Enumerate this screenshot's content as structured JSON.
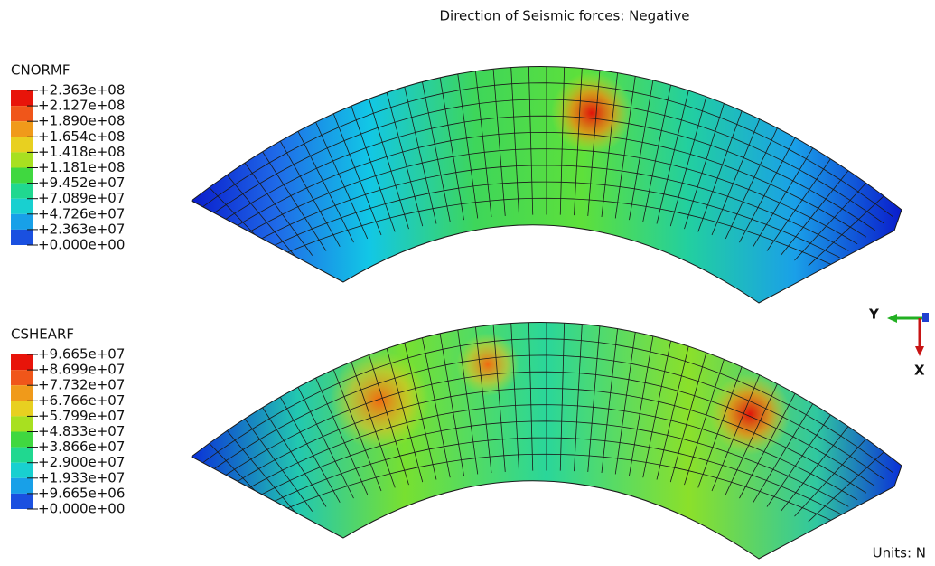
{
  "title": "Direction of Seismic forces: Negative",
  "legends": [
    {
      "title": "CNORMF",
      "labels": [
        "+2.363e+08",
        "+2.127e+08",
        "+1.890e+08",
        "+1.654e+08",
        "+1.418e+08",
        "+1.181e+08",
        "+9.452e+07",
        "+7.089e+07",
        "+4.726e+07",
        "+2.363e+07",
        "+0.000e+00"
      ]
    },
    {
      "title": "CSHEARF",
      "labels": [
        "+9.665e+07",
        "+8.699e+07",
        "+7.732e+07",
        "+6.766e+07",
        "+5.799e+07",
        "+4.833e+07",
        "+3.866e+07",
        "+2.900e+07",
        "+1.933e+07",
        "+9.665e+06",
        "+0.000e+00"
      ]
    }
  ],
  "triad": {
    "y": "Y",
    "x": "X"
  },
  "units": "Units: N"
}
